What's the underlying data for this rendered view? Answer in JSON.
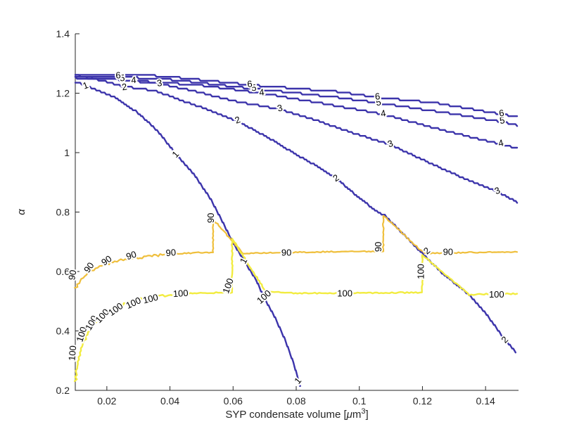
{
  "figure": {
    "background": "#ffffff",
    "axis_color": "#262626",
    "tick_label_color": "#262626"
  },
  "chart_data": {
    "type": "contour",
    "title": "",
    "xlabel": {
      "pre": "SYP condensate volume [",
      "mu": "μ",
      "m": "m",
      "sup": "3",
      "post": "]"
    },
    "ylabel": "α",
    "xlim": [
      0.01,
      0.15
    ],
    "ylim": [
      0.2,
      1.4
    ],
    "grid": false,
    "legend": null,
    "xticks": [
      {
        "v": 0.02,
        "label": "0.02"
      },
      {
        "v": 0.04,
        "label": "0.04"
      },
      {
        "v": 0.06,
        "label": "0.06"
      },
      {
        "v": 0.08,
        "label": "0.08"
      },
      {
        "v": 0.1,
        "label": "0.1"
      },
      {
        "v": 0.12,
        "label": "0.12"
      },
      {
        "v": 0.14,
        "label": "0.14"
      }
    ],
    "yticks": [
      {
        "v": 0.2,
        "label": "0.2"
      },
      {
        "v": 0.4,
        "label": "0.4"
      },
      {
        "v": 0.6,
        "label": "0.6"
      },
      {
        "v": 0.8,
        "label": "0.8"
      },
      {
        "v": 1.0,
        "label": "1"
      },
      {
        "v": 1.2,
        "label": "1.2"
      },
      {
        "v": 1.4,
        "label": "1.4"
      }
    ],
    "levels": [
      1,
      2,
      3,
      4,
      5,
      6,
      90,
      100
    ],
    "colors": {
      "blue": "#3c34ab",
      "orange": "#efbf3c",
      "yellow": "#f2ec41"
    },
    "lines": [
      {
        "level": 1,
        "color": "blue",
        "style": "stepped",
        "width": 2.4,
        "points": [
          [
            0.01,
            1.238
          ],
          [
            0.0162,
            1.214
          ],
          [
            0.0229,
            1.184
          ],
          [
            0.0296,
            1.136
          ],
          [
            0.0363,
            1.071
          ],
          [
            0.0419,
            0.995
          ],
          [
            0.0475,
            0.929
          ],
          [
            0.053,
            0.842
          ],
          [
            0.0564,
            0.772
          ],
          [
            0.0604,
            0.689
          ],
          [
            0.0642,
            0.624
          ],
          [
            0.0675,
            0.567
          ],
          [
            0.0697,
            0.515
          ],
          [
            0.0731,
            0.449
          ],
          [
            0.0764,
            0.372
          ],
          [
            0.0791,
            0.294
          ],
          [
            0.0813,
            0.212
          ]
        ],
        "labels": [
          {
            "t": "1",
            "x": 0.0133,
            "a": 1.224,
            "r": -20
          },
          {
            "t": "1",
            "x": 0.0419,
            "a": 0.993,
            "r": -48
          },
          {
            "t": "1",
            "x": 0.0635,
            "a": 0.635,
            "r": -62
          },
          {
            "t": "1",
            "x": 0.0807,
            "a": 0.231,
            "r": -50
          }
        ]
      },
      {
        "level": 2,
        "color": "blue",
        "style": "stepped",
        "width": 2.4,
        "points": [
          [
            0.01,
            1.252
          ],
          [
            0.0174,
            1.245
          ],
          [
            0.0256,
            1.222
          ],
          [
            0.0352,
            1.209
          ],
          [
            0.0441,
            1.174
          ],
          [
            0.053,
            1.141
          ],
          [
            0.0615,
            1.106
          ],
          [
            0.0709,
            1.052
          ],
          [
            0.0798,
            0.995
          ],
          [
            0.0865,
            0.955
          ],
          [
            0.0927,
            0.913
          ],
          [
            0.0998,
            0.849
          ],
          [
            0.105,
            0.807
          ],
          [
            0.1081,
            0.788
          ],
          [
            0.1143,
            0.722
          ],
          [
            0.1206,
            0.654
          ],
          [
            0.1266,
            0.591
          ],
          [
            0.1322,
            0.544
          ],
          [
            0.1348,
            0.522
          ],
          [
            0.14,
            0.461
          ],
          [
            0.1449,
            0.388
          ],
          [
            0.1495,
            0.329
          ]
        ],
        "labels": [
          {
            "t": "2",
            "x": 0.0256,
            "a": 1.219,
            "r": -10
          },
          {
            "t": "2",
            "x": 0.0615,
            "a": 1.108,
            "r": -20
          },
          {
            "t": "2",
            "x": 0.0927,
            "a": 0.913,
            "r": -33
          },
          {
            "t": "2",
            "x": 0.1215,
            "a": 0.668,
            "r": -42
          },
          {
            "t": "2",
            "x": 0.1462,
            "a": 0.369,
            "r": -46
          }
        ]
      },
      {
        "level": 3,
        "color": "blue",
        "style": "stepped",
        "width": 2.4,
        "points": [
          [
            0.01,
            1.254
          ],
          [
            0.0218,
            1.247
          ],
          [
            0.0367,
            1.232
          ],
          [
            0.0486,
            1.205
          ],
          [
            0.0597,
            1.175
          ],
          [
            0.0749,
            1.146
          ],
          [
            0.0865,
            1.108
          ],
          [
            0.0976,
            1.068
          ],
          [
            0.1099,
            1.026
          ],
          [
            0.1221,
            0.966
          ],
          [
            0.1333,
            0.913
          ],
          [
            0.1438,
            0.868
          ],
          [
            0.15,
            0.833
          ]
        ],
        "labels": [
          {
            "t": "3",
            "x": 0.0367,
            "a": 1.232,
            "r": -7
          },
          {
            "t": "3",
            "x": 0.0749,
            "a": 1.148,
            "r": -14
          },
          {
            "t": "3",
            "x": 0.1099,
            "a": 1.028,
            "r": -20
          },
          {
            "t": "3",
            "x": 0.1438,
            "a": 0.87,
            "r": -22
          }
        ]
      },
      {
        "level": 4,
        "color": "blue",
        "style": "stepped",
        "width": 2.4,
        "points": [
          [
            0.01,
            1.256
          ],
          [
            0.0285,
            1.242
          ],
          [
            0.0486,
            1.228
          ],
          [
            0.0691,
            1.2
          ],
          [
            0.0887,
            1.165
          ],
          [
            0.1076,
            1.129
          ],
          [
            0.1266,
            1.075
          ],
          [
            0.1449,
            1.028
          ],
          [
            0.15,
            1.014
          ]
        ],
        "labels": [
          {
            "t": "4",
            "x": 0.0285,
            "a": 1.242,
            "r": -5
          },
          {
            "t": "4",
            "x": 0.0691,
            "a": 1.201,
            "r": -7
          },
          {
            "t": "4",
            "x": 0.1076,
            "a": 1.13,
            "r": -10
          },
          {
            "t": "4",
            "x": 0.1449,
            "a": 1.03,
            "r": -13
          }
        ]
      },
      {
        "level": 5,
        "color": "blue",
        "style": "stepped",
        "width": 2.4,
        "points": [
          [
            0.01,
            1.259
          ],
          [
            0.0374,
            1.249
          ],
          [
            0.0657,
            1.216
          ],
          [
            0.0931,
            1.186
          ],
          [
            0.1061,
            1.167
          ],
          [
            0.1244,
            1.139
          ],
          [
            0.1451,
            1.104
          ],
          [
            0.15,
            1.092
          ]
        ],
        "labels": [
          {
            "t": "5",
            "x": 0.0249,
            "a": 1.249,
            "r": -4
          },
          {
            "t": "5",
            "x": 0.0666,
            "a": 1.216,
            "r": -6
          },
          {
            "t": "5",
            "x": 0.1061,
            "a": 1.167,
            "r": -8
          },
          {
            "t": "5",
            "x": 0.1453,
            "a": 1.106,
            "r": -9
          }
        ]
      },
      {
        "level": 6,
        "color": "blue",
        "style": "stepped",
        "width": 2.4,
        "points": [
          [
            0.01,
            1.264
          ],
          [
            0.0374,
            1.258
          ],
          [
            0.0653,
            1.228
          ],
          [
            0.0931,
            1.205
          ],
          [
            0.1058,
            1.186
          ],
          [
            0.1244,
            1.167
          ],
          [
            0.1451,
            1.129
          ],
          [
            0.15,
            1.12
          ]
        ],
        "labels": [
          {
            "t": "6",
            "x": 0.0236,
            "a": 1.258,
            "r": -3
          },
          {
            "t": "6",
            "x": 0.0653,
            "a": 1.229,
            "r": -5
          },
          {
            "t": "6",
            "x": 0.1058,
            "a": 1.187,
            "r": -7
          },
          {
            "t": "6",
            "x": 0.1451,
            "a": 1.131,
            "r": -8
          }
        ]
      },
      {
        "level": 90,
        "color": "orange",
        "style": "noisy",
        "width": 2.2,
        "points": [
          [
            0.01,
            0.544
          ],
          [
            0.0111,
            0.562
          ],
          [
            0.0125,
            0.579
          ],
          [
            0.014,
            0.593
          ],
          [
            0.0158,
            0.605
          ],
          [
            0.0178,
            0.616
          ],
          [
            0.02,
            0.626
          ],
          [
            0.0225,
            0.633
          ],
          [
            0.0252,
            0.64
          ],
          [
            0.0285,
            0.645
          ],
          [
            0.0318,
            0.649
          ],
          [
            0.0356,
            0.654
          ],
          [
            0.0396,
            0.656
          ],
          [
            0.0446,
            0.661
          ],
          [
            0.0497,
            0.664
          ],
          [
            0.0537,
            0.664
          ],
          [
            0.0537,
            0.776
          ],
          [
            0.0631,
            0.661
          ],
          [
            0.0865,
            0.666
          ],
          [
            0.1076,
            0.668
          ],
          [
            0.1076,
            0.788
          ],
          [
            0.1206,
            0.661
          ],
          [
            0.1355,
            0.664
          ],
          [
            0.15,
            0.666
          ]
        ],
        "labels": [
          {
            "t": "90",
            "x": 0.0093,
            "a": 0.588,
            "r": -80
          },
          {
            "t": "90",
            "x": 0.0145,
            "a": 0.612,
            "r": -55
          },
          {
            "t": "90",
            "x": 0.02,
            "a": 0.635,
            "r": -35
          },
          {
            "t": "90",
            "x": 0.0278,
            "a": 0.652,
            "r": -18
          },
          {
            "t": "90",
            "x": 0.0403,
            "a": 0.661,
            "r": -5
          },
          {
            "t": "90",
            "x": 0.0532,
            "a": 0.78,
            "r": -90
          },
          {
            "t": "90",
            "x": 0.0769,
            "a": 0.661,
            "r": 0
          },
          {
            "t": "90",
            "x": 0.1062,
            "a": 0.683,
            "r": -90
          },
          {
            "t": "90",
            "x": 0.1281,
            "a": 0.664,
            "r": 0
          }
        ]
      },
      {
        "level": 100,
        "color": "yellow",
        "style": "noisy",
        "width": 2.4,
        "points": [
          [
            0.01,
            0.231
          ],
          [
            0.0104,
            0.266
          ],
          [
            0.0111,
            0.304
          ],
          [
            0.012,
            0.341
          ],
          [
            0.0131,
            0.374
          ],
          [
            0.0145,
            0.402
          ],
          [
            0.016,
            0.426
          ],
          [
            0.0178,
            0.445
          ],
          [
            0.0198,
            0.461
          ],
          [
            0.0223,
            0.475
          ],
          [
            0.0249,
            0.487
          ],
          [
            0.0281,
            0.499
          ],
          [
            0.0314,
            0.508
          ],
          [
            0.0352,
            0.515
          ],
          [
            0.0396,
            0.52
          ],
          [
            0.0446,
            0.525
          ],
          [
            0.0497,
            0.527
          ],
          [
            0.0553,
            0.529
          ],
          [
            0.0597,
            0.529
          ],
          [
            0.0597,
            0.711
          ],
          [
            0.0704,
            0.532
          ],
          [
            0.0798,
            0.527
          ],
          [
            0.0954,
            0.527
          ],
          [
            0.111,
            0.529
          ],
          [
            0.1199,
            0.529
          ],
          [
            0.1199,
            0.656
          ],
          [
            0.1348,
            0.522
          ],
          [
            0.1422,
            0.525
          ],
          [
            0.15,
            0.525
          ]
        ],
        "labels": [
          {
            "t": "100",
            "x": 0.0093,
            "a": 0.325,
            "r": -85
          },
          {
            "t": "100",
            "x": 0.0122,
            "a": 0.388,
            "r": -72
          },
          {
            "t": "100",
            "x": 0.0153,
            "a": 0.426,
            "r": -60
          },
          {
            "t": "100",
            "x": 0.0187,
            "a": 0.449,
            "r": -48
          },
          {
            "t": "100",
            "x": 0.0229,
            "a": 0.471,
            "r": -36
          },
          {
            "t": "100",
            "x": 0.0285,
            "a": 0.492,
            "r": -25
          },
          {
            "t": "100",
            "x": 0.0339,
            "a": 0.506,
            "r": -14
          },
          {
            "t": "100",
            "x": 0.0434,
            "a": 0.524,
            "r": -4
          },
          {
            "t": "100",
            "x": 0.0586,
            "a": 0.551,
            "r": -70
          },
          {
            "t": "100",
            "x": 0.0699,
            "a": 0.513,
            "r": -42
          },
          {
            "t": "100",
            "x": 0.0954,
            "a": 0.524,
            "r": 0
          },
          {
            "t": "100",
            "x": 0.1197,
            "a": 0.6,
            "r": -90
          },
          {
            "t": "100",
            "x": 0.1435,
            "a": 0.52,
            "r": 0
          }
        ]
      }
    ]
  }
}
